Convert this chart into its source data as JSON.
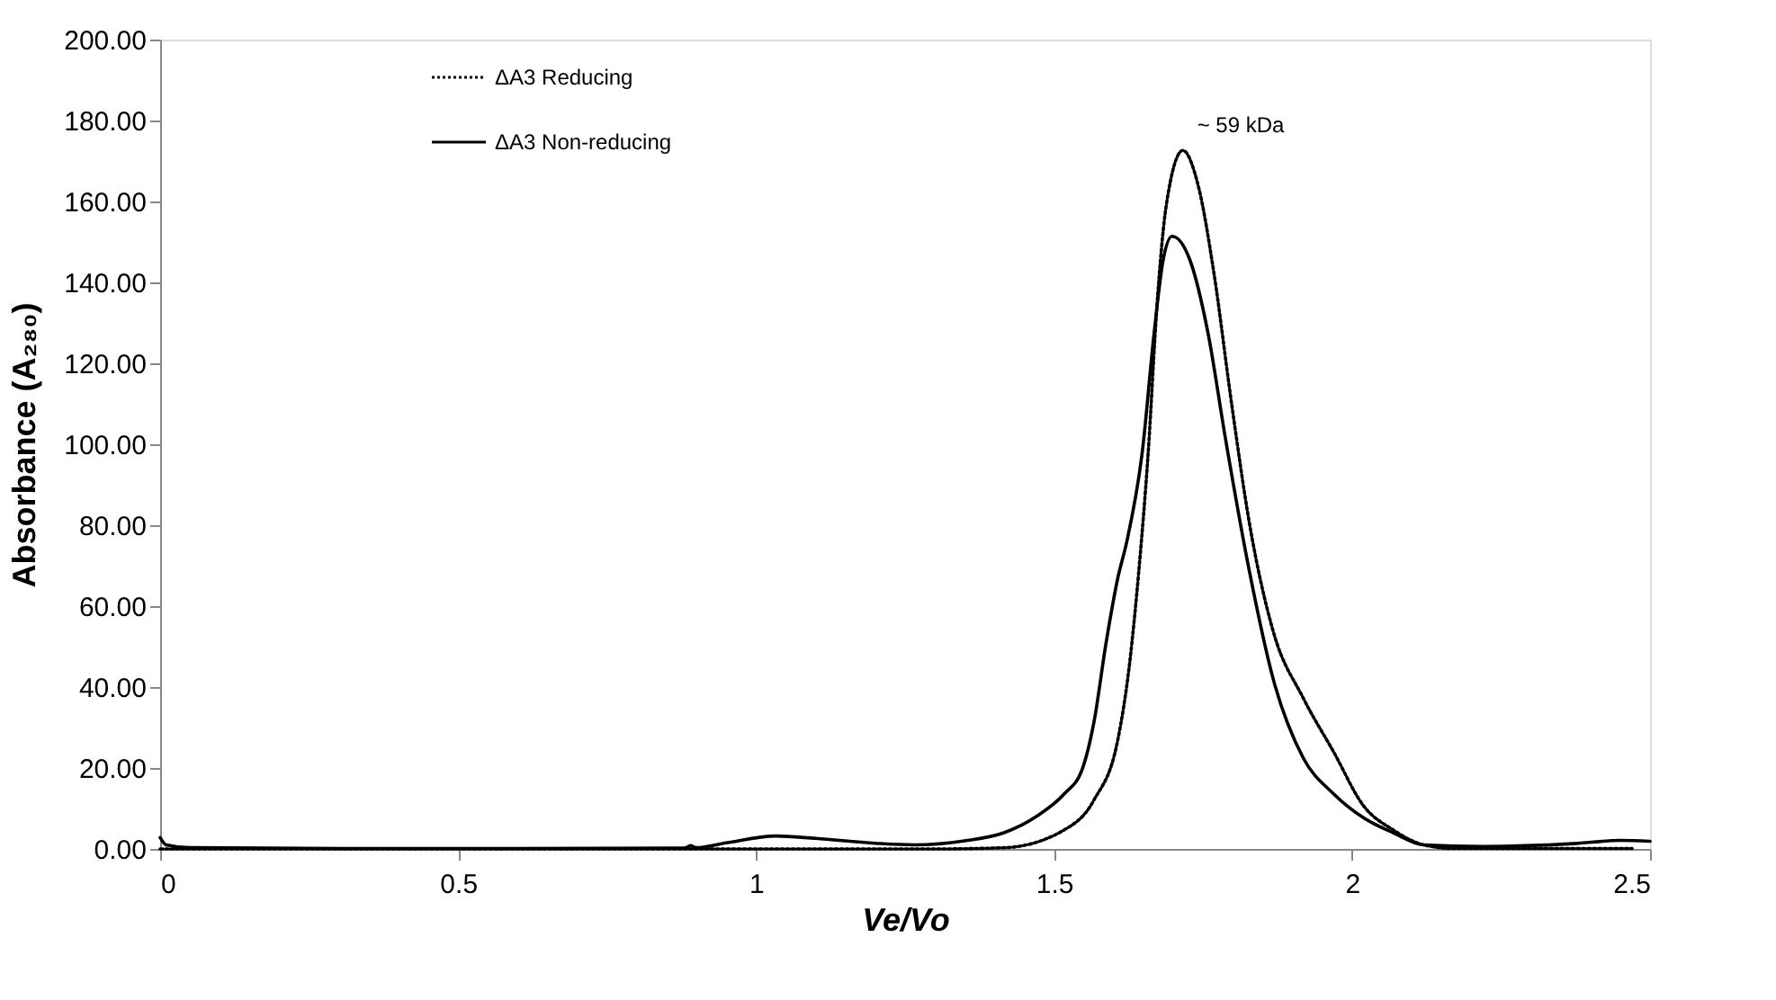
{
  "chart_data": {
    "type": "line",
    "xlabel": "Ve/Vo",
    "ylabel": "Absorbance (A₂₈₀)",
    "xlim": [
      0,
      2.5
    ],
    "xticks": [
      0,
      0.5,
      1,
      1.5,
      2,
      2.5
    ],
    "ylim": [
      0,
      200
    ],
    "yticks": [
      {
        "value": 0,
        "label": "0.00"
      },
      {
        "value": 20,
        "label": "20.00"
      },
      {
        "value": 40,
        "label": "40.00"
      },
      {
        "value": 60,
        "label": "60.00"
      },
      {
        "value": 80,
        "label": "80.00"
      },
      {
        "value": 100,
        "label": "100.00"
      },
      {
        "value": 120,
        "label": "120.00"
      },
      {
        "value": 140,
        "label": "140.00"
      },
      {
        "value": 160,
        "label": "160.00"
      },
      {
        "value": 180,
        "label": "180.00"
      },
      {
        "value": 200,
        "label": "200.00"
      }
    ],
    "grid": false,
    "legend": "top left",
    "marker": "none",
    "annotations": [
      {
        "text": "~ 59 kDa",
        "x": 1.716,
        "y": 172.6
      }
    ],
    "series": [
      {
        "name": "ΔA3 Reducing",
        "color": "#000000",
        "line_style": "dotted",
        "x": [
          0,
          0.5,
          1,
          1.3,
          1.416,
          1.517,
          1.567,
          1.607,
          1.627,
          1.642,
          1.658,
          1.673,
          1.688,
          1.716,
          1.743,
          1.768,
          1.798,
          1.828,
          1.868,
          1.918,
          1.969,
          2.019,
          2.069,
          2.12,
          2.17,
          2.47
        ],
        "values": [
          0,
          0,
          0,
          0,
          0.3,
          4.7,
          12.1,
          27,
          46.2,
          68.4,
          98.1,
          135,
          158.8,
          172.6,
          163.2,
          142.5,
          109.9,
          80.3,
          53.6,
          37.3,
          24,
          10.7,
          4.7,
          1,
          0.1,
          0.1
        ]
      },
      {
        "name": "ΔA3 Non-reducing",
        "color": "#000000",
        "line_style": "solid",
        "x": [
          0,
          0.01,
          0.05,
          0.3,
          0.6,
          0.88,
          0.89,
          0.9,
          0.95,
          1.033,
          1.1,
          1.2,
          1.265,
          1.35,
          1.416,
          1.47,
          1.517,
          1.547,
          1.567,
          1.587,
          1.607,
          1.622,
          1.648,
          1.668,
          1.683,
          1.698,
          1.728,
          1.758,
          1.788,
          1.828,
          1.868,
          1.918,
          1.969,
          2.019,
          2.069,
          2.12,
          2.22,
          2.371,
          2.451,
          2.5
        ],
        "values": [
          2.8,
          1.0,
          0.3,
          0.1,
          0.1,
          0.2,
          0.8,
          0.3,
          1.5,
          3.2,
          2.6,
          1.4,
          1.0,
          2.0,
          4.0,
          8.0,
          13.6,
          19.6,
          31.4,
          50.7,
          67,
          75.9,
          98.1,
          127.7,
          145.5,
          151.4,
          145.5,
          127.7,
          101,
          68.4,
          41.8,
          22.5,
          13.6,
          7.7,
          4,
          1,
          0.6,
          1.3,
          2.1,
          1.9
        ]
      }
    ]
  }
}
